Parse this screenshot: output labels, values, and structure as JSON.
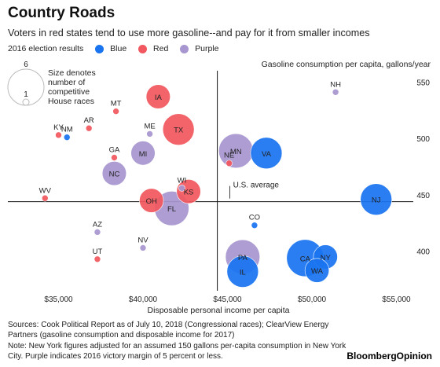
{
  "title": "Country Roads",
  "subtitle": "Voters in red states tend to use more gasoline--and pay for it from smaller incomes",
  "legend": {
    "label": "2016 election results",
    "items": [
      {
        "name": "Blue",
        "color": "#1a74f0"
      },
      {
        "name": "Red",
        "color": "#f1585f"
      },
      {
        "name": "Purple",
        "color": "#a796cf"
      }
    ]
  },
  "size_legend": {
    "large_value": "6",
    "small_value": "1",
    "text": [
      "Size denotes",
      "number of",
      "competitive",
      "House races"
    ]
  },
  "footnotes": [
    "Sources: Cook Political Report as of July 10, 2018 (Congressional races); ClearView Energy Partners (gasoline consumption and disposable income for 2017)",
    "Note: New York figures adjusted for an assumed 150 gallons per-capita consumption in New York City. Purple indicates 2016 victory margin of 5 percent or less."
  ],
  "brand": "BloombergOpinion",
  "chart_data": {
    "type": "scatter",
    "xlabel": "Disposable personal income per capita",
    "ylabel": "Gasoline consumption per capita, gallons/year",
    "xlim": [
      32000,
      56000
    ],
    "ylim": [
      365,
      560
    ],
    "x_ticks": [
      {
        "value": 35000,
        "label": "$35,000"
      },
      {
        "value": 40000,
        "label": "$40,000"
      },
      {
        "value": 45000,
        "label": "$45,000"
      },
      {
        "value": 50000,
        "label": "$50,000"
      },
      {
        "value": 55000,
        "label": "$55,000"
      }
    ],
    "y_ticks": [
      {
        "value": 400,
        "label": "400"
      },
      {
        "value": 450,
        "label": "450"
      },
      {
        "value": 500,
        "label": "500"
      },
      {
        "value": 550,
        "label": "550"
      }
    ],
    "reference_lines": {
      "x_average": 44400,
      "y_average": 444,
      "label": "U.S. average"
    },
    "grid": false,
    "colors": {
      "Blue": "#1a74f0",
      "Red": "#f1585f",
      "Purple": "#a796cf"
    },
    "points": [
      {
        "state": "NH",
        "result": "Purple",
        "income": 51400,
        "gallons": 541,
        "races": 1
      },
      {
        "state": "IA",
        "result": "Red",
        "income": 40900,
        "gallons": 537,
        "races": 3
      },
      {
        "state": "MT",
        "result": "Red",
        "income": 38400,
        "gallons": 524,
        "races": 1
      },
      {
        "state": "AR",
        "result": "Red",
        "income": 36800,
        "gallons": 509,
        "races": 1
      },
      {
        "state": "KY",
        "result": "Red",
        "income": 35000,
        "gallons": 503,
        "races": 1
      },
      {
        "state": "NM",
        "result": "Blue",
        "income": 35500,
        "gallons": 501,
        "races": 1
      },
      {
        "state": "ME",
        "result": "Purple",
        "income": 40400,
        "gallons": 504,
        "races": 1
      },
      {
        "state": "TX",
        "result": "Red",
        "income": 42100,
        "gallons": 508,
        "races": 5
      },
      {
        "state": "GA",
        "result": "Red",
        "income": 38300,
        "gallons": 483,
        "races": 1
      },
      {
        "state": "MI",
        "result": "Purple",
        "income": 40000,
        "gallons": 487,
        "races": 3
      },
      {
        "state": "MN",
        "result": "Purple",
        "income": 45500,
        "gallons": 489,
        "races": 6
      },
      {
        "state": "VA",
        "result": "Blue",
        "income": 47300,
        "gallons": 487,
        "races": 5
      },
      {
        "state": "NE",
        "result": "Red",
        "income": 45100,
        "gallons": 478,
        "races": 1
      },
      {
        "state": "NC",
        "result": "Purple",
        "income": 38300,
        "gallons": 469,
        "races": 3
      },
      {
        "state": "WI",
        "result": "Purple",
        "income": 42300,
        "gallons": 456,
        "races": 1
      },
      {
        "state": "KS",
        "result": "Red",
        "income": 42700,
        "gallons": 453,
        "races": 3
      },
      {
        "state": "WV",
        "result": "Red",
        "income": 34200,
        "gallons": 447,
        "races": 1
      },
      {
        "state": "OH",
        "result": "Red",
        "income": 40500,
        "gallons": 445,
        "races": 3
      },
      {
        "state": "FL",
        "result": "Purple",
        "income": 41700,
        "gallons": 438,
        "races": 6
      },
      {
        "state": "NJ",
        "result": "Blue",
        "income": 53800,
        "gallons": 446,
        "races": 5
      },
      {
        "state": "CO",
        "result": "Blue",
        "income": 46600,
        "gallons": 423,
        "races": 1
      },
      {
        "state": "AZ",
        "result": "Purple",
        "income": 37300,
        "gallons": 417,
        "races": 1
      },
      {
        "state": "NV",
        "result": "Purple",
        "income": 40000,
        "gallons": 403,
        "races": 1
      },
      {
        "state": "UT",
        "result": "Red",
        "income": 37300,
        "gallons": 393,
        "races": 1
      },
      {
        "state": "PA",
        "result": "Purple",
        "income": 45900,
        "gallons": 395,
        "races": 6
      },
      {
        "state": "IL",
        "result": "Blue",
        "income": 45900,
        "gallons": 382,
        "races": 5
      },
      {
        "state": "CA",
        "result": "Blue",
        "income": 49600,
        "gallons": 394,
        "races": 7
      },
      {
        "state": "NY",
        "result": "Blue",
        "income": 50800,
        "gallons": 395,
        "races": 3
      },
      {
        "state": "WA",
        "result": "Blue",
        "income": 50300,
        "gallons": 383,
        "races": 3
      }
    ]
  }
}
